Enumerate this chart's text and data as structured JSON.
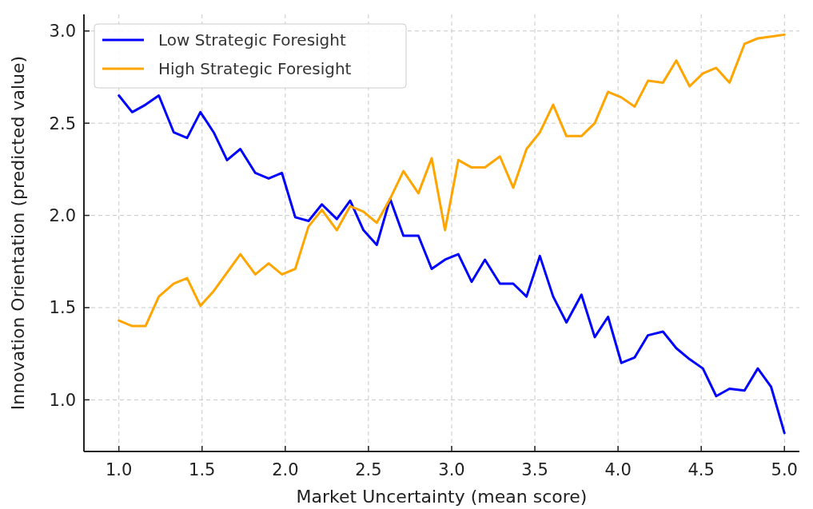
{
  "chart_data": {
    "type": "line",
    "xlabel": "Market Uncertainty (mean score)",
    "ylabel": "Innovation Orientation (predicted value)",
    "x": [
      1.0,
      1.08,
      1.16,
      1.24,
      1.33,
      1.41,
      1.49,
      1.57,
      1.65,
      1.73,
      1.82,
      1.9,
      1.98,
      2.06,
      2.14,
      2.22,
      2.31,
      2.39,
      2.47,
      2.55,
      2.63,
      2.71,
      2.8,
      2.88,
      2.96,
      3.04,
      3.12,
      3.2,
      3.29,
      3.37,
      3.45,
      3.53,
      3.61,
      3.69,
      3.78,
      3.86,
      3.94,
      4.02,
      4.1,
      4.18,
      4.27,
      4.35,
      4.43,
      4.51,
      4.59,
      4.67,
      4.76,
      4.84,
      4.92,
      5.0
    ],
    "series": [
      {
        "name": "Low Strategic Foresight",
        "color": "#0000ff",
        "values": [
          2.65,
          2.56,
          2.6,
          2.65,
          2.45,
          2.42,
          2.56,
          2.45,
          2.3,
          2.36,
          2.23,
          2.2,
          2.23,
          1.99,
          1.97,
          2.06,
          1.98,
          2.08,
          1.92,
          1.84,
          2.09,
          1.89,
          1.89,
          1.71,
          1.76,
          1.79,
          1.64,
          1.76,
          1.63,
          1.63,
          1.56,
          1.78,
          1.56,
          1.42,
          1.57,
          1.34,
          1.45,
          1.2,
          1.23,
          1.35,
          1.37,
          1.28,
          1.22,
          1.17,
          1.02,
          1.06,
          1.05,
          1.17,
          1.07,
          0.82
        ]
      },
      {
        "name": "High Strategic Foresight",
        "color": "#ffa500",
        "values": [
          1.43,
          1.4,
          1.4,
          1.56,
          1.63,
          1.66,
          1.51,
          1.59,
          1.69,
          1.79,
          1.68,
          1.74,
          1.68,
          1.71,
          1.94,
          2.03,
          1.92,
          2.05,
          2.02,
          1.96,
          2.09,
          2.24,
          2.12,
          2.31,
          1.92,
          2.3,
          2.26,
          2.26,
          2.32,
          2.15,
          2.36,
          2.45,
          2.6,
          2.43,
          2.43,
          2.5,
          2.67,
          2.64,
          2.59,
          2.73,
          2.72,
          2.84,
          2.7,
          2.77,
          2.8,
          2.72,
          2.93,
          2.96,
          2.97,
          2.98
        ]
      }
    ],
    "xlim": [
      0.79,
      5.09
    ],
    "ylim": [
      0.72,
      3.09
    ],
    "xticks": [
      {
        "value": 1,
        "label": "1.0"
      },
      {
        "value": 1.5,
        "label": "1.5"
      },
      {
        "value": 2,
        "label": "2.0"
      },
      {
        "value": 2.5,
        "label": "2.5"
      },
      {
        "value": 3,
        "label": "3.0"
      },
      {
        "value": 3.5,
        "label": "3.5"
      },
      {
        "value": 4,
        "label": "4.0"
      },
      {
        "value": 4.5,
        "label": "4.5"
      },
      {
        "value": 5,
        "label": "5.0"
      }
    ],
    "yticks": [
      {
        "value": 1,
        "label": "1.0"
      },
      {
        "value": 1.5,
        "label": "1.5"
      },
      {
        "value": 2,
        "label": "2.0"
      },
      {
        "value": 2.5,
        "label": "2.5"
      },
      {
        "value": 3,
        "label": "3.0"
      }
    ],
    "grid": true,
    "legend": "top left",
    "line_style": "solid"
  }
}
